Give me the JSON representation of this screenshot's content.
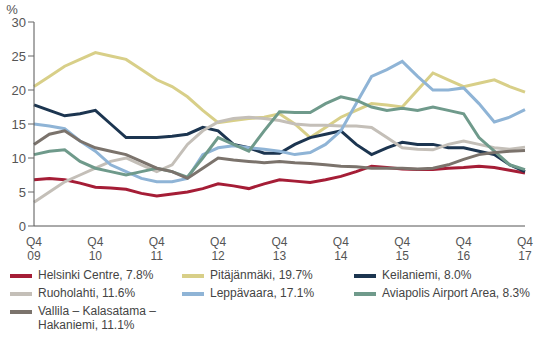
{
  "chart_data": {
    "type": "line",
    "y_label": "%",
    "categories": [
      "Q4 09",
      null,
      null,
      null,
      "Q4 10",
      null,
      null,
      null,
      "Q4 11",
      null,
      null,
      null,
      "Q4 12",
      null,
      null,
      null,
      "Q4 13",
      null,
      null,
      null,
      "Q4 14",
      null,
      null,
      null,
      "Q4 15",
      null,
      null,
      null,
      "Q4 16",
      null,
      null,
      null,
      "Q4 17"
    ],
    "ylim": [
      0,
      30
    ],
    "yticks": [
      0,
      5,
      10,
      15,
      20,
      25,
      30
    ],
    "grid": false,
    "legend": "bottom",
    "series": [
      {
        "name": "Helsinki Centre, 7.8%",
        "color": "#a51d36",
        "values": [
          6.8,
          7.0,
          6.8,
          6.3,
          5.7,
          5.6,
          5.4,
          4.8,
          4.4,
          4.7,
          5.0,
          5.5,
          6.2,
          5.9,
          5.5,
          6.2,
          6.8,
          6.6,
          6.4,
          6.8,
          7.3,
          8.0,
          8.8,
          8.6,
          8.4,
          8.3,
          8.3,
          8.5,
          8.6,
          8.8,
          8.6,
          8.2,
          7.8
        ]
      },
      {
        "name": "Pitäjänmäki, 19.7%",
        "color": "#d8cf88",
        "values": [
          20.5,
          22,
          23.5,
          24.5,
          25.5,
          25,
          24.5,
          23,
          21.5,
          20.5,
          19,
          17,
          15.2,
          15.5,
          15.8,
          16,
          16.5,
          15,
          13,
          14.5,
          16,
          17,
          18,
          17.8,
          17.5,
          20,
          22.5,
          21.5,
          20.5,
          21,
          21.5,
          20.5,
          19.7
        ]
      },
      {
        "name": "Keilaniemi, 8.0%",
        "color": "#1c3550",
        "values": [
          17.8,
          17,
          16.2,
          16.5,
          17,
          15,
          13,
          13,
          13,
          13.2,
          13.5,
          14.5,
          14,
          12,
          11.5,
          10.7,
          10.7,
          12,
          13,
          13.5,
          14,
          12,
          10.5,
          11.5,
          12.3,
          12,
          12,
          11.5,
          11.5,
          11,
          10.5,
          9,
          8.0
        ]
      },
      {
        "name": "Ruoholahti, 11.6%",
        "color": "#c4bfb8",
        "values": [
          3.5,
          5,
          6.5,
          7.5,
          8.5,
          9.5,
          10,
          9,
          8,
          9,
          12,
          14,
          15.3,
          15.8,
          16,
          15.8,
          15.5,
          15,
          14.8,
          14.8,
          14.7,
          14.7,
          14.5,
          13,
          11.5,
          11.3,
          11.2,
          12,
          12.5,
          12,
          11.5,
          11.3,
          11.6
        ]
      },
      {
        "name": "Leppävaara, 17.1%",
        "color": "#8fb4d6",
        "values": [
          15,
          14.7,
          14.3,
          12.5,
          11,
          9,
          8,
          7,
          6.5,
          6.5,
          7,
          10.5,
          11.5,
          11.8,
          11.5,
          11.3,
          11,
          10.5,
          10.8,
          12,
          14,
          18,
          22,
          23,
          24.2,
          22,
          20,
          20,
          20.3,
          18,
          15.3,
          16,
          17.1
        ]
      },
      {
        "name": "Aviapolis Airport Area, 8.3%",
        "color": "#6f9a8b",
        "values": [
          10.5,
          11,
          11.2,
          9.5,
          8.5,
          8,
          7.5,
          8,
          8.5,
          8,
          7.2,
          10,
          13,
          12,
          11,
          14,
          16.8,
          16.7,
          16.7,
          18,
          19,
          18.5,
          17.5,
          17,
          17.3,
          17,
          17.5,
          17,
          16.5,
          13,
          11,
          9,
          8.3
        ]
      },
      {
        "name": "Vallila – Kalasatama – Hakaniemi, 11.1%",
        "color": "#7b736c",
        "values": [
          12,
          13.5,
          14,
          12.5,
          11.5,
          11,
          10.5,
          9.5,
          8.5,
          8,
          7,
          8.5,
          10,
          9.7,
          9.5,
          9.3,
          9.5,
          9.3,
          9.2,
          9,
          8.8,
          8.7,
          8.5,
          8.5,
          8.5,
          8.4,
          8.5,
          9,
          9.8,
          10.5,
          10.8,
          11,
          11.1
        ]
      }
    ]
  }
}
